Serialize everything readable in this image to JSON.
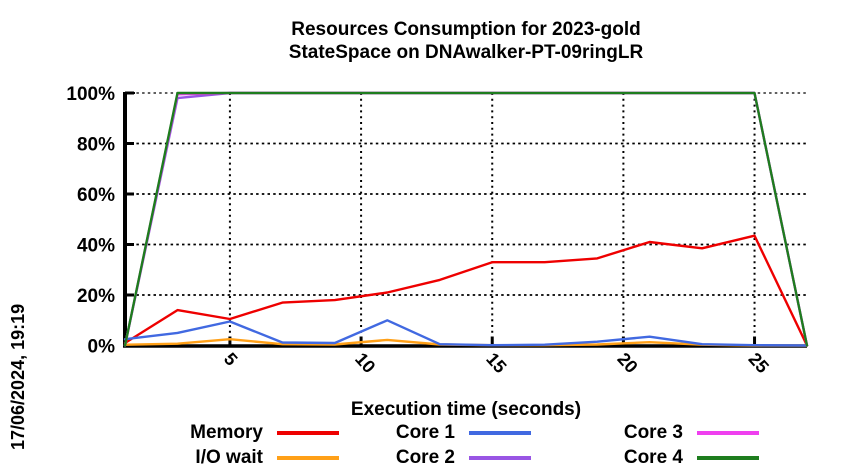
{
  "title": {
    "line1": "Resources Consumption for 2023-gold",
    "line2": "StateSpace on DNAwalker-PT-09ringLR"
  },
  "timestamp": "17/06/2024, 19:19",
  "chart_data": {
    "type": "line",
    "title": "Resources Consumption for 2023-gold StateSpace on DNAwalker-PT-09ringLR",
    "xlabel": "Execution time (seconds)",
    "ylabel": "",
    "x": [
      1,
      3,
      5,
      7,
      9,
      11,
      13,
      15,
      17,
      19,
      21,
      23,
      25,
      27
    ],
    "xlim": [
      1,
      27
    ],
    "ylim": [
      0,
      100
    ],
    "xticks": [
      5,
      10,
      15,
      20,
      25
    ],
    "yticks": [
      0,
      20,
      40,
      60,
      80,
      100
    ],
    "ytick_suffix": "%",
    "grid": true,
    "legend_position": "bottom",
    "series": [
      {
        "name": "Memory",
        "color": "#ee0000",
        "values": [
          1,
          14,
          10.5,
          17,
          18,
          21,
          26,
          33,
          33,
          34.5,
          41,
          38.5,
          43.5,
          0
        ]
      },
      {
        "name": "I/O wait",
        "color": "#ffa018",
        "values": [
          0.3,
          0.7,
          2.5,
          0.5,
          0.4,
          2.2,
          0.4,
          0.1,
          0.1,
          0.4,
          1.3,
          0.3,
          0,
          0
        ]
      },
      {
        "name": "Core 1",
        "color": "#4169e1",
        "values": [
          2.5,
          5,
          9.5,
          1.2,
          1,
          10,
          0.5,
          0.1,
          0.3,
          1.5,
          3.5,
          0.5,
          0.1,
          0
        ]
      },
      {
        "name": "Core 2",
        "color": "#9955e4",
        "values": [
          0,
          98,
          100,
          100,
          100,
          100,
          100,
          100,
          100,
          100,
          100,
          100,
          100,
          0
        ]
      },
      {
        "name": "Core 3",
        "color": "#ef3fef",
        "values": [
          0,
          99.5,
          100,
          100,
          100,
          100,
          100,
          100,
          100,
          100,
          100,
          100,
          100,
          0
        ]
      },
      {
        "name": "Core 4",
        "color": "#1e7d1e",
        "values": [
          0,
          100,
          100,
          100,
          100,
          100,
          100,
          100,
          100,
          100,
          100,
          100,
          100,
          0
        ]
      }
    ]
  }
}
